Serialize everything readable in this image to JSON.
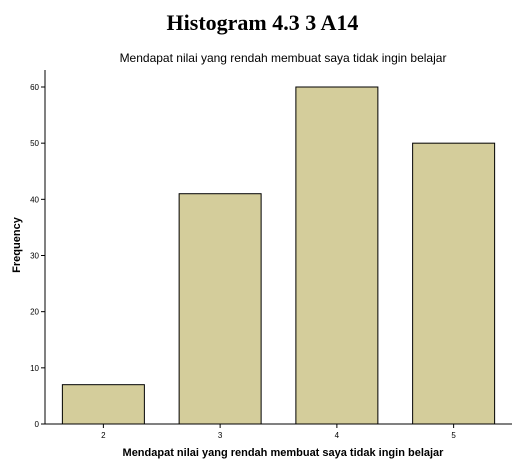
{
  "page_heading": "Histogram 4.3 3 A14",
  "chart_data": {
    "type": "bar",
    "title": "Mendapat nilai yang rendah membuat saya tidak ingin belajar",
    "xlabel": "Mendapat nilai yang rendah membuat saya tidak ingin belajar",
    "ylabel": "Frequency",
    "categories": [
      "2",
      "3",
      "4",
      "5"
    ],
    "values": [
      7,
      41,
      60,
      50
    ],
    "ylim": [
      0,
      60
    ],
    "yticks": [
      0,
      10,
      20,
      30,
      40,
      50,
      60
    ],
    "bar_color": "#d4cd9b",
    "bar_stroke": "#000000",
    "grid": false
  }
}
